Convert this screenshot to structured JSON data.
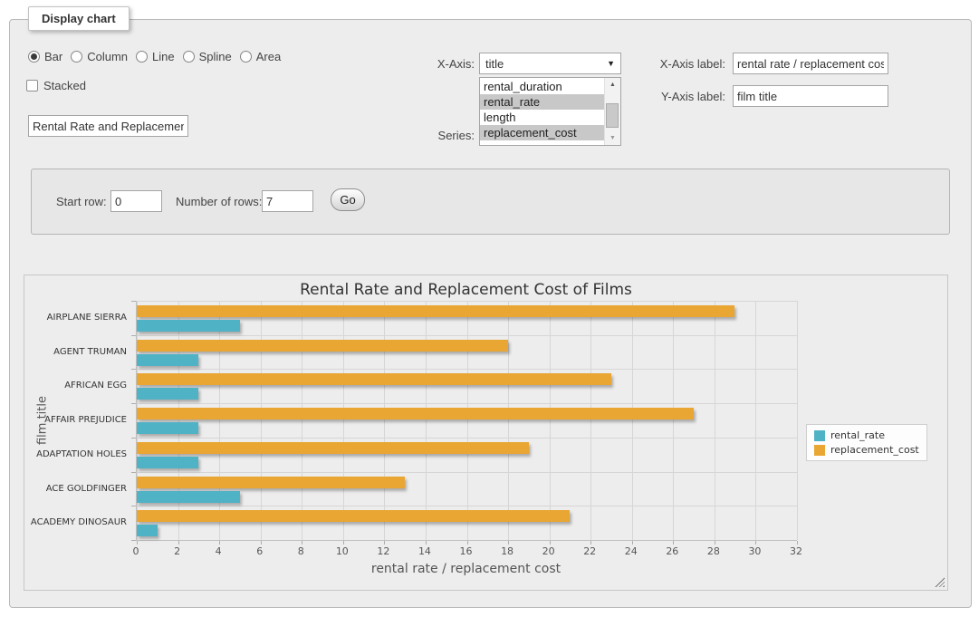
{
  "display_chart": {
    "legend": "Display chart",
    "chart_types": [
      {
        "label": "Bar",
        "selected": true
      },
      {
        "label": "Column",
        "selected": false
      },
      {
        "label": "Line",
        "selected": false
      },
      {
        "label": "Spline",
        "selected": false
      },
      {
        "label": "Area",
        "selected": false
      }
    ],
    "stacked_label": "Stacked",
    "title_input_value": "Rental Rate and Replacement Cost of Films",
    "x_axis": {
      "label": "X-Axis:",
      "selected": "title"
    },
    "series": {
      "label": "Series:",
      "options": [
        {
          "label": "rental_duration",
          "selected": false
        },
        {
          "label": "rental_rate",
          "selected": true
        },
        {
          "label": "length",
          "selected": false
        },
        {
          "label": "replacement_cost",
          "selected": true
        }
      ]
    },
    "x_axis_label": {
      "label": "X-Axis label:",
      "value": "rental rate / replacement cost"
    },
    "y_axis_label": {
      "label": "Y-Axis label:",
      "value": "film title"
    }
  },
  "query_panel": {
    "start_row_label": "Start row:",
    "start_row_value": "0",
    "num_rows_label": "Number of rows:",
    "num_rows_value": "7",
    "go_label": "Go"
  },
  "icons": {
    "select_chevron": "▼",
    "scroll_up": "▲",
    "scroll_down": "▼"
  },
  "chart_data": {
    "type": "bar",
    "title": "Rental Rate and Replacement Cost of Films",
    "categories": [
      "AIRPLANE SIERRA",
      "AGENT TRUMAN",
      "AFRICAN EGG",
      "AFFAIR PREJUDICE",
      "ADAPTATION HOLES",
      "ACE GOLDFINGER",
      "ACADEMY DINOSAUR"
    ],
    "series": [
      {
        "name": "rental_rate",
        "color": "#4FB2C5",
        "values": [
          4.99,
          2.99,
          2.99,
          2.99,
          2.99,
          4.99,
          0.99
        ]
      },
      {
        "name": "replacement_cost",
        "color": "#E9A632",
        "values": [
          28.99,
          17.99,
          22.99,
          26.99,
          18.99,
          12.99,
          20.99
        ]
      }
    ],
    "bar_order_top_to_bottom": [
      "replacement_cost",
      "rental_rate"
    ],
    "xlabel": "rental rate / replacement cost",
    "ylabel": "film title",
    "xlim": [
      0,
      32
    ],
    "xticks": [
      0,
      2,
      4,
      6,
      8,
      10,
      12,
      14,
      16,
      18,
      20,
      22,
      24,
      26,
      28,
      30,
      32
    ],
    "grid": true,
    "legend_position": "right"
  }
}
